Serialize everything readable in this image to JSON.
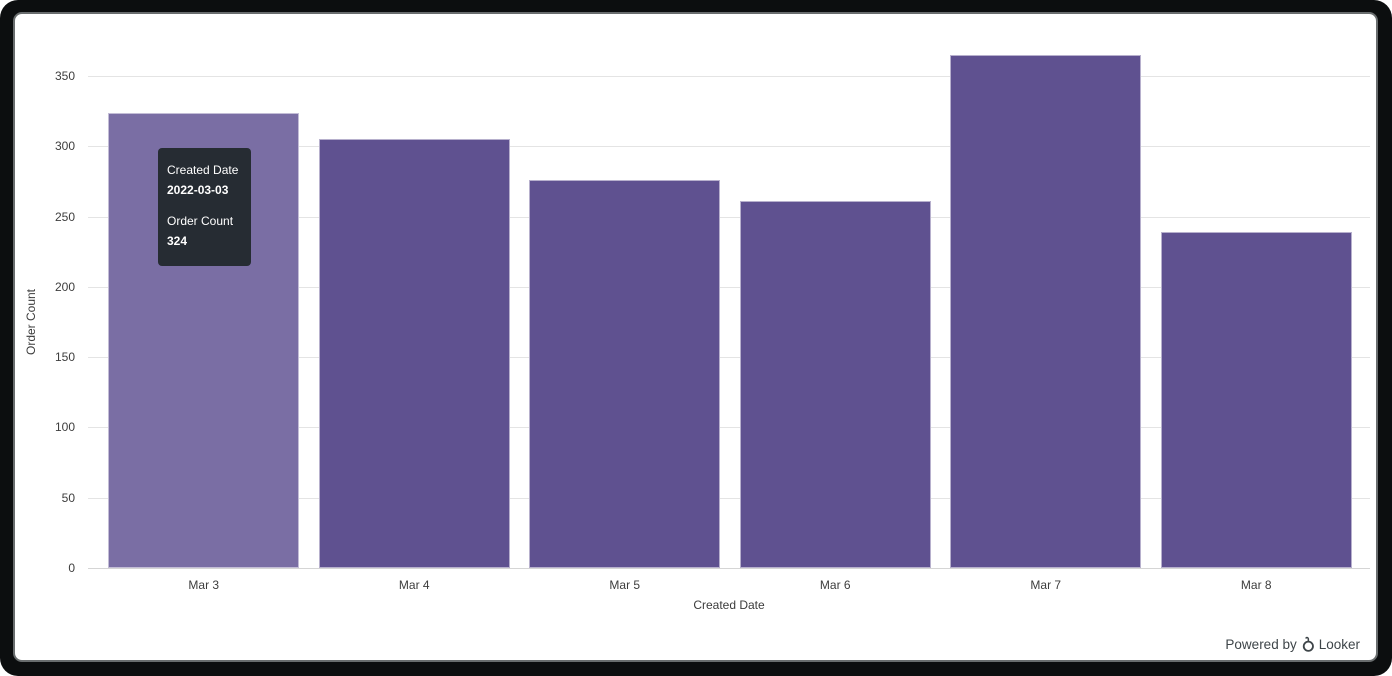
{
  "chart_data": {
    "type": "bar",
    "title": "",
    "xlabel": "Created Date",
    "ylabel": "Order Count",
    "categories": [
      "Mar 3",
      "Mar 4",
      "Mar 5",
      "Mar 6",
      "Mar 7",
      "Mar 8"
    ],
    "values": [
      324,
      305,
      276,
      261,
      365,
      239
    ],
    "ylim": [
      0,
      370
    ],
    "yticks": [
      0,
      50,
      100,
      150,
      200,
      250,
      300,
      350
    ],
    "grid": true,
    "legend": "none",
    "hovered_index": 0,
    "colors": {
      "bar": "#5F5190",
      "bar_hover": "#7A6EA4",
      "gridline": "#e4e4e4",
      "tooltip_bg": "#262c33"
    }
  },
  "tooltip": {
    "field1_label": "Created Date",
    "field1_value": "2022-03-03",
    "field2_label": "Order Count",
    "field2_value": "324"
  },
  "footer": {
    "powered_by": "Powered by",
    "brand": "Looker"
  }
}
